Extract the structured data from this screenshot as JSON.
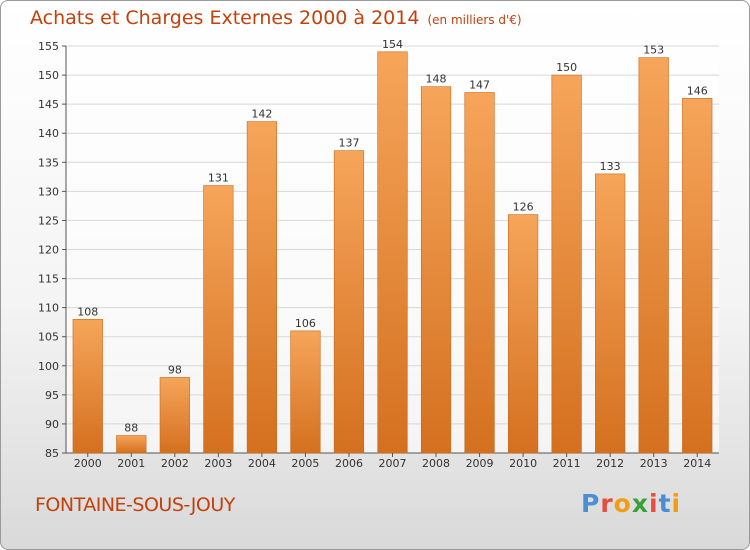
{
  "header": {
    "title": "Achats et Charges Externes 2000 à 2014",
    "unit": "(en milliers d'€)"
  },
  "footer": {
    "place": "FONTAINE-SOUS-JOUY",
    "logo_letters": [
      "P",
      "r",
      "o",
      "x",
      "i",
      "t",
      "i"
    ]
  },
  "colors": {
    "bar_light": "#f6a55a",
    "bar_dark": "#d4701f",
    "accent": "#c2410c",
    "logo": [
      "#4a8fd6",
      "#e74c3c",
      "#f39c12",
      "#3aa13a",
      "#e74c3c",
      "#4a8fd6",
      "#f39c12"
    ]
  },
  "chart_data": {
    "type": "bar",
    "title": "Achats et Charges Externes 2000 à 2014",
    "subtitle": "(en milliers d'€)",
    "categories": [
      "2000",
      "2001",
      "2002",
      "2003",
      "2004",
      "2005",
      "2006",
      "2007",
      "2008",
      "2009",
      "2010",
      "2011",
      "2012",
      "2013",
      "2014"
    ],
    "values": [
      108,
      88,
      98,
      131,
      142,
      106,
      137,
      154,
      148,
      147,
      126,
      150,
      133,
      153,
      146
    ],
    "ylim": [
      85,
      155
    ],
    "yticks": [
      85,
      90,
      95,
      100,
      105,
      110,
      115,
      120,
      125,
      130,
      135,
      140,
      145,
      150,
      155
    ],
    "grid": true,
    "data_labels": true
  }
}
